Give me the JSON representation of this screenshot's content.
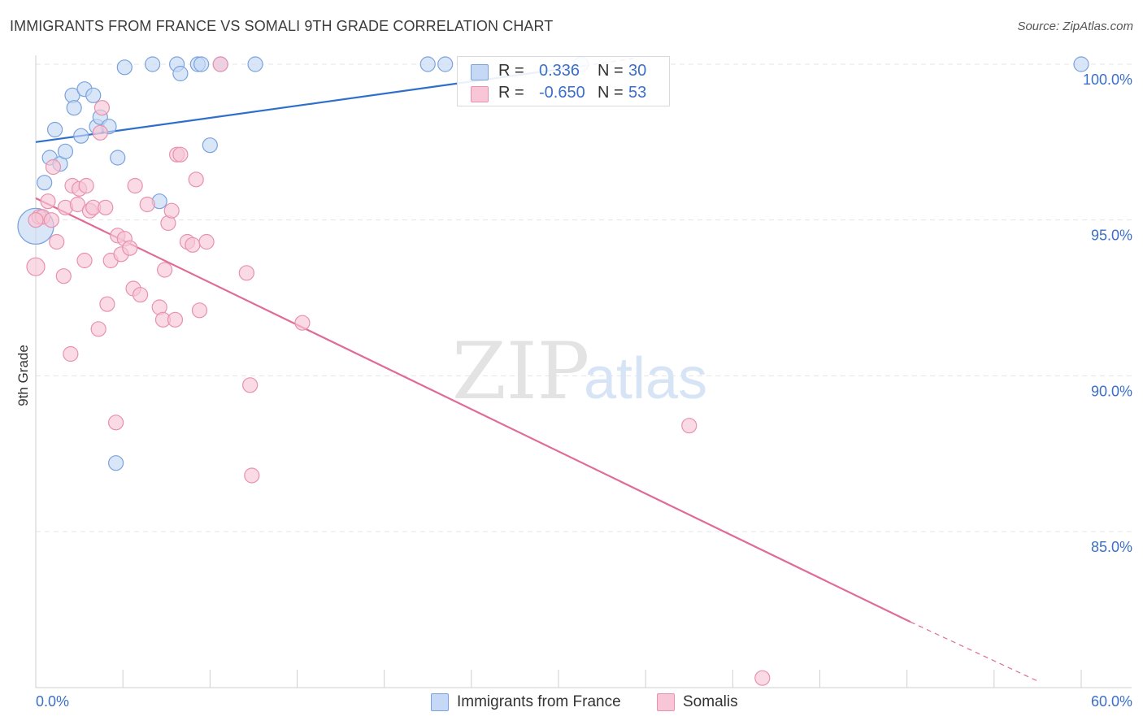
{
  "header": {
    "title": "IMMIGRANTS FROM FRANCE VS SOMALI 9TH GRADE CORRELATION CHART",
    "source": "Source: ZipAtlas.com"
  },
  "watermark": {
    "zip": "ZIP",
    "atlas": "atlas"
  },
  "legend": {
    "r_label": "R =",
    "n_label": "N =",
    "series": [
      {
        "name": "Immigrants from France",
        "r": "0.336",
        "n": "30"
      },
      {
        "name": "Somalis",
        "r": "-0.650",
        "n": "53"
      }
    ]
  },
  "colors": {
    "blue_fill": "#c5d8f5",
    "blue_stroke": "#7aa2dd",
    "blue_line": "#2f6fcc",
    "pink_fill": "#f8c6d6",
    "pink_stroke": "#e891ad",
    "pink_line": "#e06b98",
    "tick_label": "#3b6fc9"
  },
  "chart_data": {
    "type": "scatter",
    "title": "IMMIGRANTS FROM FRANCE VS SOMALI 9TH GRADE CORRELATION CHART",
    "xlabel": "",
    "ylabel": "9th Grade",
    "xlim": [
      0,
      60
    ],
    "ylim": [
      80,
      100.8
    ],
    "x_tick_labels": [
      "0.0%",
      "60.0%"
    ],
    "y_ticks": [
      {
        "value": 100,
        "label": "100.0%"
      },
      {
        "value": 95,
        "label": "95.0%"
      },
      {
        "value": 90,
        "label": "90.0%"
      },
      {
        "value": 85,
        "label": "85.0%"
      }
    ],
    "grid": true,
    "series": [
      {
        "name": "Immigrants from France",
        "color": "blue",
        "trend": {
          "x": [
            0,
            31.5
          ],
          "y": [
            97.5,
            99.95
          ],
          "dashed_to": [
            34.5,
            100.2
          ]
        },
        "points": [
          [
            0.0,
            94.8,
            22
          ],
          [
            0.5,
            96.2,
            9
          ],
          [
            0.8,
            97.0,
            9
          ],
          [
            1.1,
            97.9,
            9
          ],
          [
            1.4,
            96.8,
            9
          ],
          [
            1.7,
            97.2,
            9
          ],
          [
            2.1,
            99.0,
            9
          ],
          [
            2.2,
            98.6,
            9
          ],
          [
            2.6,
            97.7,
            9
          ],
          [
            2.8,
            99.2,
            9
          ],
          [
            3.3,
            99.0,
            9
          ],
          [
            3.5,
            98.0,
            9
          ],
          [
            3.7,
            98.3,
            9
          ],
          [
            4.2,
            98.0,
            9
          ],
          [
            4.6,
            87.2,
            9
          ],
          [
            4.7,
            97.0,
            9
          ],
          [
            5.1,
            99.9,
            9
          ],
          [
            6.7,
            100.0,
            9
          ],
          [
            7.1,
            95.6,
            9
          ],
          [
            8.1,
            100.0,
            9
          ],
          [
            8.3,
            99.7,
            9
          ],
          [
            9.3,
            100.0,
            9
          ],
          [
            9.5,
            100.0,
            9
          ],
          [
            10.0,
            97.4,
            9
          ],
          [
            10.6,
            100.0,
            9
          ],
          [
            12.6,
            100.0,
            9
          ],
          [
            22.5,
            100.0,
            9
          ],
          [
            23.5,
            100.0,
            9
          ],
          [
            31.3,
            100.0,
            9
          ],
          [
            60.0,
            100.0,
            9
          ]
        ]
      },
      {
        "name": "Somalis",
        "color": "pink",
        "trend": {
          "x": [
            0,
            50.2
          ],
          "y": [
            95.7,
            82.1
          ],
          "dashed_to": [
            57.5,
            80.2
          ]
        },
        "points": [
          [
            0.0,
            93.5,
            11
          ],
          [
            0.2,
            95.1,
            9
          ],
          [
            0.4,
            95.1,
            9
          ],
          [
            0.7,
            95.6,
            9
          ],
          [
            0.9,
            95.0,
            9
          ],
          [
            1.0,
            96.7,
            9
          ],
          [
            1.2,
            94.3,
            9
          ],
          [
            1.6,
            93.2,
            9
          ],
          [
            1.7,
            95.4,
            9
          ],
          [
            2.0,
            90.7,
            9
          ],
          [
            2.1,
            96.1,
            9
          ],
          [
            2.4,
            95.5,
            9
          ],
          [
            2.5,
            96.0,
            9
          ],
          [
            2.8,
            93.7,
            9
          ],
          [
            2.9,
            96.1,
            9
          ],
          [
            3.1,
            95.3,
            9
          ],
          [
            3.3,
            95.4,
            9
          ],
          [
            3.6,
            91.5,
            9
          ],
          [
            3.7,
            97.8,
            9
          ],
          [
            3.8,
            98.6,
            9
          ],
          [
            4.0,
            95.4,
            9
          ],
          [
            4.1,
            92.3,
            9
          ],
          [
            4.3,
            93.7,
            9
          ],
          [
            4.6,
            88.5,
            9
          ],
          [
            4.7,
            94.5,
            9
          ],
          [
            4.9,
            93.9,
            9
          ],
          [
            5.1,
            94.4,
            9
          ],
          [
            5.4,
            94.1,
            9
          ],
          [
            5.6,
            92.8,
            9
          ],
          [
            5.7,
            96.1,
            9
          ],
          [
            6.0,
            92.6,
            9
          ],
          [
            6.4,
            95.5,
            9
          ],
          [
            7.1,
            92.2,
            9
          ],
          [
            7.3,
            91.8,
            9
          ],
          [
            7.4,
            93.4,
            9
          ],
          [
            7.6,
            94.9,
            9
          ],
          [
            7.8,
            95.3,
            9
          ],
          [
            8.0,
            91.8,
            9
          ],
          [
            8.1,
            97.1,
            9
          ],
          [
            8.3,
            97.1,
            9
          ],
          [
            8.7,
            94.3,
            9
          ],
          [
            9.0,
            94.2,
            9
          ],
          [
            9.2,
            96.3,
            9
          ],
          [
            9.4,
            92.1,
            9
          ],
          [
            9.8,
            94.3,
            9
          ],
          [
            10.6,
            100.0,
            9
          ],
          [
            12.1,
            93.3,
            9
          ],
          [
            12.3,
            89.7,
            9
          ],
          [
            12.4,
            86.8,
            9
          ],
          [
            15.3,
            91.7,
            9
          ],
          [
            37.5,
            88.4,
            9
          ],
          [
            41.7,
            80.3,
            9
          ],
          [
            0.0,
            95.0,
            9
          ]
        ]
      }
    ]
  }
}
